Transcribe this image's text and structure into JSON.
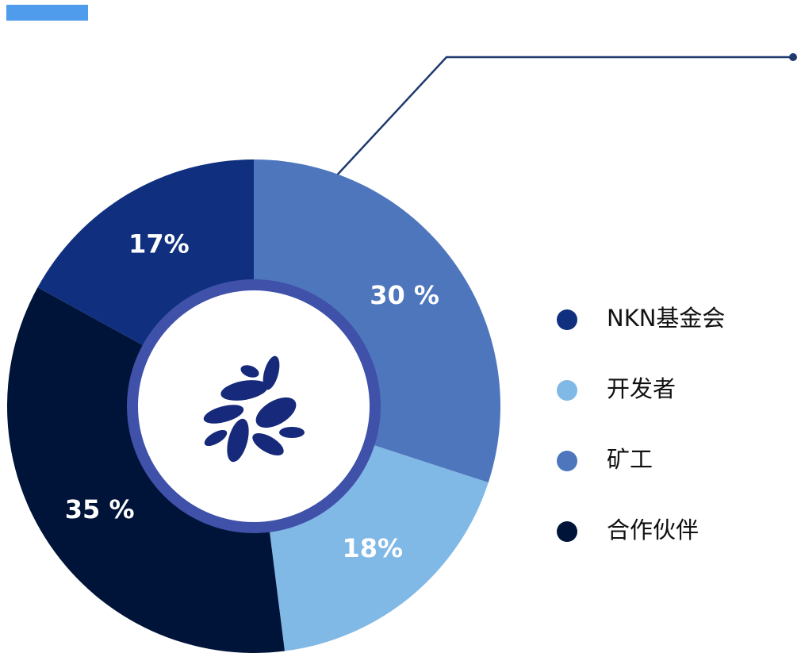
{
  "chart_data": {
    "type": "pie",
    "categories": [
      "矿工",
      "开发者",
      "合作伙伴",
      "NKN基金会"
    ],
    "values": [
      30,
      18,
      35,
      17
    ],
    "value_labels": [
      "30 %",
      "18%",
      "35 %",
      "17%"
    ],
    "colors": [
      "#4e76bd",
      "#80b8e6",
      "#001338",
      "#10307f"
    ]
  }
}
